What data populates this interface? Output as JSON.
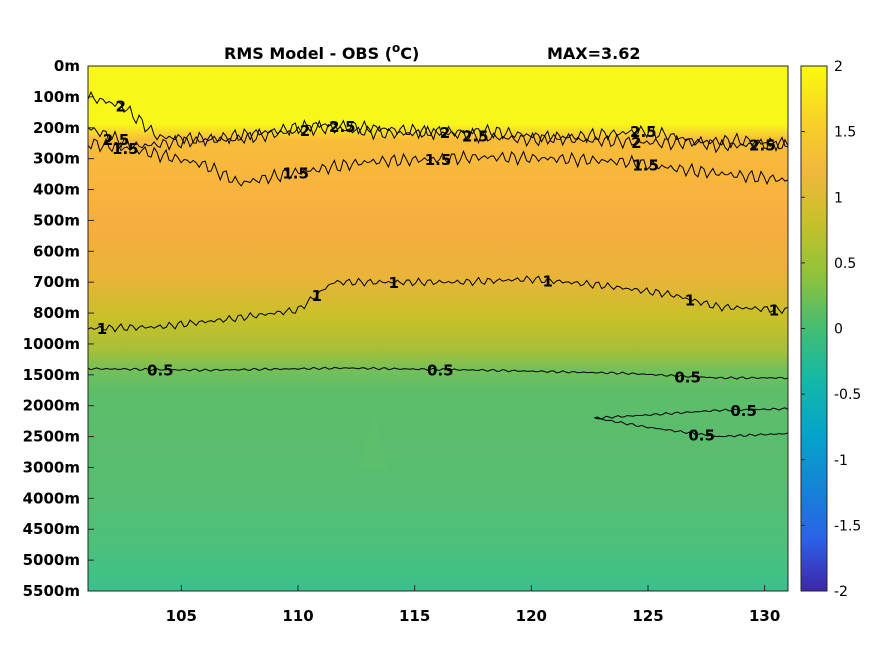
{
  "chart_data": {
    "type": "heatmap",
    "title": "RMS Model - OBS (",
    "title_unit": "C)",
    "title_superscript": "o",
    "max_label": "MAX=3.62",
    "x": {
      "range": [
        101,
        131
      ],
      "ticks": [
        "105",
        "110",
        "115",
        "120",
        "125",
        "130"
      ]
    },
    "y": {
      "ticks": [
        "0m",
        "100m",
        "200m",
        "300m",
        "400m",
        "500m",
        "600m",
        "700m",
        "800m",
        "1000m",
        "1500m",
        "2000m",
        "2500m",
        "3000m",
        "4000m",
        "4500m",
        "5000m",
        "5500m"
      ]
    },
    "colorbar": {
      "range": [
        -2,
        2
      ],
      "ticks": [
        "2",
        "1.5",
        "1",
        "0.5",
        "0",
        "-0.5",
        "-1",
        "-1.5",
        "-2"
      ],
      "colormap": "parula"
    },
    "contours": [
      {
        "level": 2.5,
        "points": [
          [
            101,
            2.0
          ],
          [
            103,
            2.6
          ],
          [
            106,
            2.4
          ],
          [
            111,
            1.9
          ],
          [
            115,
            2.1
          ],
          [
            120,
            2.4
          ],
          [
            125,
            2.1
          ],
          [
            128,
            2.6
          ],
          [
            131,
            2.5
          ]
        ],
        "labels": [
          {
            "text": "2.5",
            "x": 102.2
          },
          {
            "text": "2.5",
            "x": 111.9
          },
          {
            "text": "2.5",
            "x": 117.6
          },
          {
            "text": "2.5",
            "x": 124.8
          },
          {
            "text": "2.5",
            "x": 129.9
          }
        ]
      },
      {
        "level": 2,
        "points": [
          [
            101,
            1.0
          ],
          [
            102.5,
            1.3
          ],
          [
            104,
            2.3
          ],
          [
            107,
            2.4
          ],
          [
            111,
            2.0
          ],
          [
            114,
            2.2
          ],
          [
            118,
            2.1
          ],
          [
            122,
            2.4
          ],
          [
            126,
            2.5
          ],
          [
            129,
            2.4
          ],
          [
            131,
            2.6
          ]
        ],
        "labels": [
          {
            "text": "2",
            "x": 102.4
          },
          {
            "text": "2",
            "x": 110.3
          },
          {
            "text": "2",
            "x": 116.3
          },
          {
            "text": "2",
            "x": 124.5
          }
        ]
      },
      {
        "level": 1.5,
        "points": [
          [
            101,
            2.5
          ],
          [
            103,
            2.7
          ],
          [
            106,
            3.2
          ],
          [
            107.5,
            3.8
          ],
          [
            109.5,
            3.5
          ],
          [
            113,
            3.1
          ],
          [
            118,
            2.95
          ],
          [
            121,
            3.0
          ],
          [
            124,
            3.1
          ],
          [
            127,
            3.4
          ],
          [
            131,
            3.7
          ]
        ],
        "labels": [
          {
            "text": "1.5",
            "x": 102.6
          },
          {
            "text": "1.5",
            "x": 109.9
          },
          {
            "text": "1.5",
            "x": 116.0
          },
          {
            "text": "1.5",
            "x": 124.9
          }
        ]
      },
      {
        "level": 1,
        "points": [
          [
            101,
            8.5
          ],
          [
            104,
            8.45
          ],
          [
            107,
            8.2
          ],
          [
            110,
            7.9
          ],
          [
            111.5,
            7.0
          ],
          [
            114,
            7.0
          ],
          [
            117,
            7.0
          ],
          [
            120,
            6.9
          ],
          [
            123,
            7.1
          ],
          [
            126,
            7.4
          ],
          [
            128,
            7.8
          ],
          [
            131,
            7.9
          ]
        ],
        "labels": [
          {
            "text": "1",
            "x": 101.6
          },
          {
            "text": "1",
            "x": 110.8
          },
          {
            "text": "1",
            "x": 114.1
          },
          {
            "text": "1",
            "x": 120.7
          },
          {
            "text": "1",
            "x": 126.8
          },
          {
            "text": "1",
            "x": 130.4
          }
        ]
      },
      {
        "level": 0.5,
        "points": [
          [
            101,
            9.8
          ],
          [
            106,
            9.85
          ],
          [
            112,
            9.78
          ],
          [
            118,
            9.85
          ],
          [
            124,
            9.95
          ],
          [
            128,
            10.1
          ],
          [
            131,
            10.1
          ]
        ],
        "labels": [
          {
            "text": "0.5",
            "x": 104.1
          },
          {
            "text": "0.5",
            "x": 116.1
          },
          {
            "text": "0.5",
            "x": 126.7
          }
        ]
      },
      {
        "level": 0.5,
        "points": [
          [
            122.7,
            11.4
          ],
          [
            125,
            11.3
          ],
          [
            128,
            11.15
          ],
          [
            131,
            11.1
          ]
        ],
        "labels": [
          {
            "text": "0.5",
            "x": 129.1
          }
        ]
      },
      {
        "level": 0.5,
        "points": [
          [
            122.7,
            11.4
          ],
          [
            125,
            11.7
          ],
          [
            128,
            12.0
          ],
          [
            131,
            11.9
          ]
        ],
        "labels": [
          {
            "text": "0.5",
            "x": 127.3
          }
        ]
      }
    ]
  }
}
